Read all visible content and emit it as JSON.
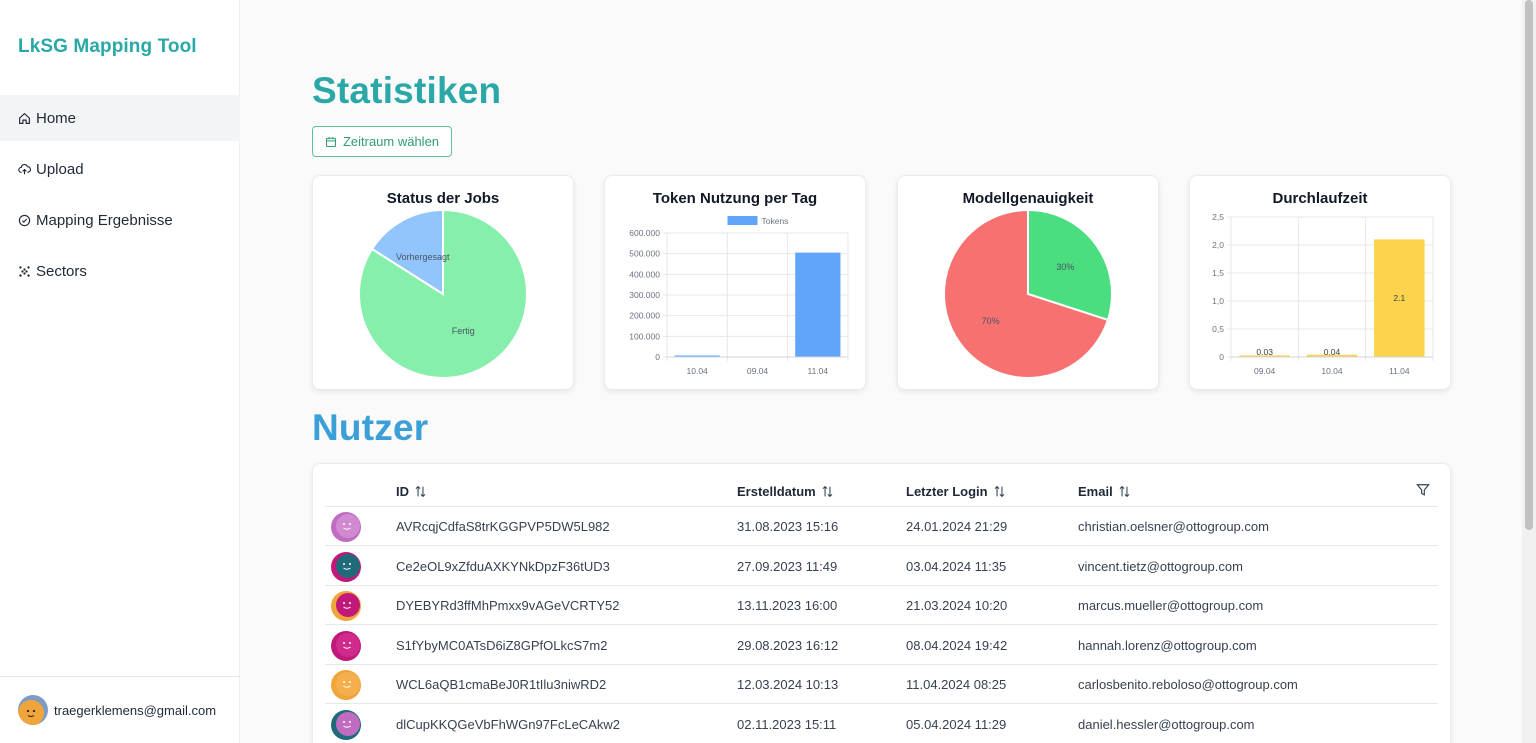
{
  "sidebar": {
    "brand": "LkSG Mapping Tool",
    "items": [
      {
        "label": "Home",
        "icon": "home-icon",
        "active": true
      },
      {
        "label": "Upload",
        "icon": "upload-cloud-icon",
        "active": false
      },
      {
        "label": "Mapping Ergebnisse",
        "icon": "check-circle-icon",
        "active": false
      },
      {
        "label": "Sectors",
        "icon": "grid-dots-icon",
        "active": false
      }
    ],
    "user_email": "traegerklemens@gmail.com"
  },
  "main": {
    "stats_title": "Statistiken",
    "range_button": "Zeitraum wählen",
    "users_title": "Nutzer"
  },
  "colors": {
    "brand": "#2aa8a8",
    "users_title": "#3b9fd8",
    "pie_green": "#86efac",
    "pie_blue": "#93c5fd",
    "bar_blue": "#60a5fa",
    "pie_red": "#f87171",
    "pie_green2": "#4ade80",
    "bar_yellow": "#fcd34d"
  },
  "chart_data": [
    {
      "type": "pie",
      "title": "Status der Jobs",
      "labels": [
        "Fertig",
        "Vorhergesagt"
      ],
      "values": [
        84,
        16
      ]
    },
    {
      "type": "bar",
      "title": "Token Nutzung per Tag",
      "categories": [
        "10.04",
        "09.04",
        "11.04"
      ],
      "series": [
        {
          "name": "Tokens",
          "values": [
            6000,
            0,
            505000
          ]
        }
      ],
      "yticks": [
        "0",
        "100.000",
        "200.000",
        "300.000",
        "400.000",
        "500.000",
        "600.000"
      ],
      "ylim": [
        0,
        600000
      ]
    },
    {
      "type": "pie",
      "title": "Modellgenauigkeit",
      "labels": [
        "30%",
        "70%"
      ],
      "values": [
        30,
        70
      ]
    },
    {
      "type": "bar",
      "title": "Durchlaufzeit",
      "categories": [
        "09.04",
        "10.04",
        "11.04"
      ],
      "values": [
        0.03,
        0.04,
        2.1
      ],
      "data_labels": [
        "0.03",
        "0.04",
        "2.1"
      ],
      "yticks": [
        "0",
        "0,5",
        "1,0",
        "1,5",
        "2,0",
        "2,5"
      ],
      "ylim": [
        0,
        2.5
      ]
    }
  ],
  "users_table": {
    "headers": {
      "id": "ID",
      "created": "Erstelldatum",
      "last_login": "Letzter Login",
      "email": "Email"
    },
    "rows": [
      {
        "id": "AVRcqjCdfaS8trKGGPVP5DW5L982",
        "created": "31.08.2023 15:16",
        "last_login": "24.01.2024 21:29",
        "email": "christian.oelsner@ottogroup.com",
        "bg": "#c06cc0",
        "fg": "#c06cc0",
        "face": "#d189d1"
      },
      {
        "id": "Ce2eOL9xZfduAXKYNkDpzF36tUD3",
        "created": "27.09.2023 11:49",
        "last_login": "03.04.2024 11:35",
        "email": "vincent.tietz@ottogroup.com",
        "bg": "#c2187a",
        "fg": "#1f6b7a",
        "face": "#1f6b7a"
      },
      {
        "id": "DYEBYRd3ffMhPmxx9vAGeVCRTY52",
        "created": "13.11.2023 16:00",
        "last_login": "21.03.2024 10:20",
        "email": "marcus.mueller@ottogroup.com",
        "bg": "#f0a53a",
        "fg": "#c2187a",
        "face": "#c2187a"
      },
      {
        "id": "S1fYbyMC0ATsD6iZ8GPfOLkcS7m2",
        "created": "29.08.2023 16:12",
        "last_login": "08.04.2024 19:42",
        "email": "hannah.lorenz@ottogroup.com",
        "bg": "#c2187a",
        "fg": "#c2187a",
        "face": "#d02a8c"
      },
      {
        "id": "WCL6aQB1cmaBeJ0R1tIlu3niwRD2",
        "created": "12.03.2024 10:13",
        "last_login": "11.04.2024 08:25",
        "email": "carlosbenito.reboloso@ottogroup.com",
        "bg": "#f0a53a",
        "fg": "#f0a53a",
        "face": "#f3b04c"
      },
      {
        "id": "dlCupKKQGeVbFhWGn97FcLeCAkw2",
        "created": "02.11.2023 15:11",
        "last_login": "05.04.2024 11:29",
        "email": "daniel.hessler@ottogroup.com",
        "bg": "#1f6b7a",
        "fg": "#c06cc0",
        "face": "#c06cc0"
      }
    ]
  }
}
